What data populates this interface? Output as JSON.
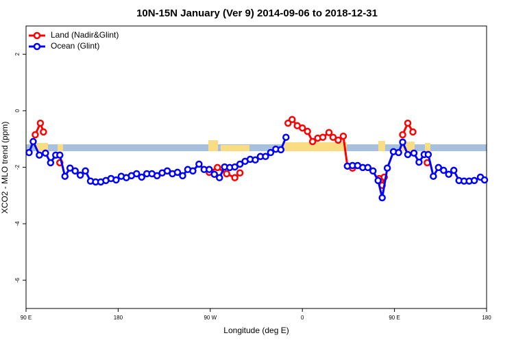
{
  "chart_data": {
    "type": "line",
    "title": "10N-15N January (Ver 9)   2014-09-06 to 2018-12-31",
    "x_label": "Longitude (deg E)",
    "y_label": "XCO2 - MLO trend (ppm)",
    "xlim": [
      90,
      540
    ],
    "xticks": [
      {
        "value": 90,
        "label": "90 E"
      },
      {
        "value": 180,
        "label": "180"
      },
      {
        "value": 270,
        "label": "90 W"
      },
      {
        "value": 360,
        "label": "0"
      },
      {
        "value": 450,
        "label": "90 E"
      },
      {
        "value": 540,
        "label": "180"
      }
    ],
    "ylim": [
      -7,
      3
    ],
    "yticks": [
      -6,
      -4,
      -2,
      0,
      2
    ],
    "legend": "top-left",
    "series": [
      {
        "name": "Land (Nadir&Glint)",
        "color": "#ff0000",
        "x": [
          99,
          104,
          107,
          null,
          123,
          null,
          269,
          277,
          286,
          294,
          299,
          null,
          346,
          350,
          355,
          360,
          365,
          370,
          375,
          380,
          386,
          390,
          395,
          400,
          404,
          409,
          null,
          435,
          438,
          440,
          null,
          458,
          463,
          468,
          null,
          482
        ],
        "values": [
          -0.85,
          -0.44,
          -0.75,
          null,
          -1.84,
          null,
          -2.18,
          -2.01,
          -2.23,
          -2.37,
          -2.2,
          null,
          -0.44,
          -0.31,
          -0.53,
          -0.61,
          -0.73,
          -1.09,
          -0.97,
          -0.94,
          -0.77,
          -0.94,
          -1.04,
          -0.9,
          -1.96,
          -2.03,
          null,
          -2.4,
          -2.64,
          -2.35,
          null,
          -0.85,
          -0.44,
          -0.75,
          null,
          -1.84
        ]
      },
      {
        "name": "Ocean (Glint)",
        "color": "#0000ff",
        "x": [
          93,
          97,
          103,
          109,
          114,
          119,
          123,
          128,
          133,
          138,
          143,
          148,
          153,
          158,
          163,
          168,
          173,
          178,
          183,
          188,
          193,
          198,
          203,
          208,
          213,
          218,
          223,
          228,
          233,
          238,
          243,
          248,
          253,
          259,
          264,
          269,
          274,
          279,
          284,
          289,
          294,
          299,
          304,
          309,
          314,
          319,
          324,
          329,
          334,
          339,
          344,
          null,
          404,
          409,
          414,
          419,
          424,
          429,
          434,
          438,
          443,
          449,
          454,
          458,
          463,
          469,
          474,
          479,
          483,
          488,
          493,
          498,
          503,
          508,
          513,
          518,
          523,
          528,
          534,
          538
        ],
        "values": [
          -1.48,
          -1.09,
          -1.57,
          -1.5,
          -1.84,
          -1.57,
          -1.57,
          -2.32,
          -2.03,
          -2.13,
          -2.28,
          -2.13,
          -2.49,
          -2.52,
          -2.52,
          -2.47,
          -2.4,
          -2.45,
          -2.32,
          -2.37,
          -2.3,
          -2.23,
          -2.35,
          -2.23,
          -2.23,
          -2.3,
          -2.2,
          -2.13,
          -2.23,
          -2.18,
          -2.3,
          -2.08,
          -2.13,
          -1.89,
          -2.08,
          -2.08,
          -2.25,
          -2.37,
          -1.99,
          -2.01,
          -1.99,
          -1.89,
          -1.79,
          -1.72,
          -1.74,
          -1.62,
          -1.62,
          -1.48,
          -1.36,
          -1.38,
          -0.94,
          null,
          -1.96,
          -1.94,
          -1.94,
          -2.01,
          -2.01,
          -2.13,
          -2.47,
          -3.08,
          -2.03,
          -1.45,
          -1.48,
          -1.11,
          -1.55,
          -1.5,
          -1.82,
          -1.55,
          -1.55,
          -2.32,
          -2.01,
          -2.11,
          -2.25,
          -2.11,
          -2.47,
          -2.49,
          -2.49,
          -2.47,
          -2.35,
          -2.45
        ]
      }
    ]
  }
}
